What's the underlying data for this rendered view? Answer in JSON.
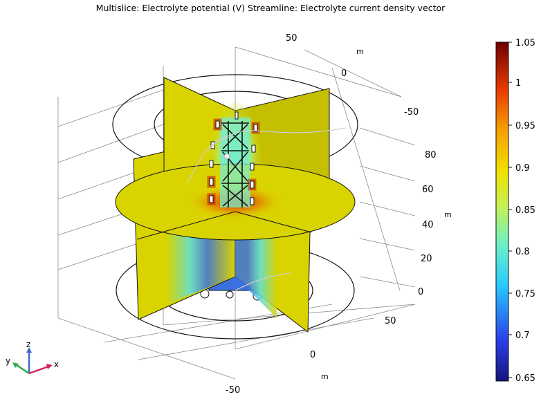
{
  "title": "Multislice: Electrolyte potential (V)  Streamline: Electrolyte current density vector",
  "axes": {
    "x_ticks": [
      "50",
      "0",
      "-50"
    ],
    "x_unit": "m",
    "y_ticks": [
      "50",
      "0",
      "-50"
    ],
    "y_unit": "m",
    "z_ticks": [
      "80",
      "60",
      "40",
      "20",
      "0"
    ],
    "z_unit": "m"
  },
  "colorbar": {
    "ticks": [
      "1.05",
      "1",
      "0.95",
      "0.9",
      "0.85",
      "0.8",
      "0.75",
      "0.7",
      "0.65"
    ],
    "min": 0.65,
    "max": 1.05,
    "colormap": "rainbow"
  },
  "triad": {
    "x": "x",
    "y": "y",
    "z": "z"
  },
  "colors": {
    "slice_yellow": "#d9d400",
    "high_red": "#c81e00",
    "low_blue": "#2f5bd6",
    "mid_cyan": "#62e6d2"
  }
}
